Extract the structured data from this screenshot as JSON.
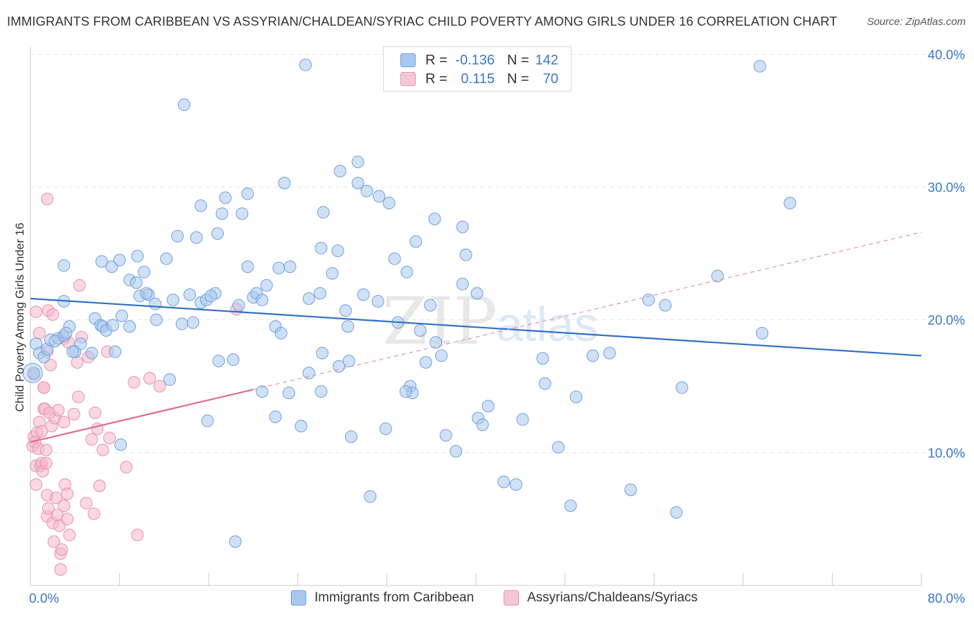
{
  "title": "IMMIGRANTS FROM CARIBBEAN VS ASSYRIAN/CHALDEAN/SYRIAC CHILD POVERTY AMONG GIRLS UNDER 16 CORRELATION CHART",
  "source": "Source: ZipAtlas.com",
  "watermark": {
    "zip": "ZIP",
    "atlas": "atlas"
  },
  "colors": {
    "blue_fill": "#a9c8ee",
    "blue_stroke": "#6f9fdc",
    "blue_line": "#2f6fc7",
    "pink_fill": "#f5b8cc",
    "pink_stroke": "#e890ac",
    "pink_line": "#e06a93",
    "accent_text": "#3b78c5",
    "grid": "#e3e3e3"
  },
  "legend": {
    "rows": [
      {
        "r_label": "R =",
        "r_value": "-0.136",
        "n_label": "N =",
        "n_value": "142",
        "color": "#a9c8ee"
      },
      {
        "r_label": "R =",
        "r_value": "0.115",
        "n_label": "N =",
        "n_value": "70",
        "color": "#f5b8cc"
      }
    ]
  },
  "chart_data": {
    "type": "scatter",
    "title": "IMMIGRANTS FROM CARIBBEAN VS ASSYRIAN/CHALDEAN/SYRIAC CHILD POVERTY AMONG GIRLS UNDER 16 CORRELATION CHART",
    "xlabel": "",
    "ylabel": "Child Poverty Among Girls Under 16",
    "xlim": [
      0,
      80
    ],
    "ylim": [
      0,
      42
    ],
    "x_tick_labels": [
      "0.0%",
      "80.0%"
    ],
    "y_ticks": [
      10,
      20,
      30,
      40
    ],
    "y_tick_labels": [
      "10.0%",
      "20.0%",
      "30.0%",
      "40.0%"
    ],
    "grid": true,
    "legend_position": "top-center",
    "series": [
      {
        "name": "Immigrants from Caribbean",
        "color": "#a9c8ee",
        "trend": {
          "x": [
            0,
            80
          ],
          "y": [
            21.6,
            17.3
          ],
          "style": "solid"
        },
        "points": [
          [
            0.3,
            16.0
          ],
          [
            0.5,
            18.2
          ],
          [
            0.8,
            17.5
          ],
          [
            1.2,
            17.2
          ],
          [
            1.5,
            17.8
          ],
          [
            1.8,
            18.5
          ],
          [
            2.5,
            18.6
          ],
          [
            3.0,
            18.8
          ],
          [
            3.5,
            19.5
          ],
          [
            3.2,
            19.0
          ],
          [
            4.0,
            17.6
          ],
          [
            4.5,
            18.2
          ],
          [
            5.5,
            17.5
          ],
          [
            5.8,
            20.1
          ],
          [
            6.3,
            19.6
          ],
          [
            6.5,
            19.5
          ],
          [
            6.8,
            19.2
          ],
          [
            7.4,
            19.6
          ],
          [
            7.6,
            17.6
          ],
          [
            8.2,
            20.3
          ],
          [
            8.9,
            19.5
          ],
          [
            2.2,
            18.4
          ],
          [
            3.8,
            17.6
          ],
          [
            3.0,
            21.4
          ],
          [
            3.0,
            24.1
          ],
          [
            6.4,
            24.4
          ],
          [
            7.3,
            24.0
          ],
          [
            8.0,
            24.5
          ],
          [
            8.9,
            23.0
          ],
          [
            9.5,
            22.8
          ],
          [
            9.8,
            21.8
          ],
          [
            10.2,
            23.6
          ],
          [
            10.6,
            21.9
          ],
          [
            11.2,
            21.2
          ],
          [
            12.2,
            24.6
          ],
          [
            12.8,
            21.5
          ],
          [
            14.3,
            21.9
          ],
          [
            15.3,
            21.3
          ],
          [
            15.8,
            21.5
          ],
          [
            16.6,
            22.0
          ],
          [
            9.6,
            24.8
          ],
          [
            10.4,
            22.0
          ],
          [
            11.3,
            20.0
          ],
          [
            13.6,
            19.7
          ],
          [
            14.6,
            19.8
          ],
          [
            18.7,
            21.1
          ],
          [
            19.5,
            24.0
          ],
          [
            20.0,
            21.7
          ],
          [
            20.3,
            22.0
          ],
          [
            20.8,
            21.5
          ],
          [
            21.2,
            22.6
          ],
          [
            22.3,
            23.9
          ],
          [
            23.3,
            24.0
          ],
          [
            22.0,
            19.5
          ],
          [
            22.5,
            19.0
          ],
          [
            18.2,
            17.0
          ],
          [
            16.9,
            16.9
          ],
          [
            16.2,
            21.8
          ],
          [
            17.2,
            28.0
          ],
          [
            17.5,
            29.2
          ],
          [
            19.5,
            29.5
          ],
          [
            19.0,
            28.0
          ],
          [
            15.3,
            28.6
          ],
          [
            16.8,
            26.5
          ],
          [
            13.2,
            26.3
          ],
          [
            14.9,
            26.2
          ],
          [
            13.8,
            36.2
          ],
          [
            24.7,
            39.2
          ],
          [
            22.8,
            30.3
          ],
          [
            26.3,
            28.1
          ],
          [
            26.1,
            25.4
          ],
          [
            25.0,
            21.6
          ],
          [
            26.0,
            22.0
          ],
          [
            27.1,
            23.5
          ],
          [
            28.3,
            20.7
          ],
          [
            27.6,
            25.2
          ],
          [
            26.2,
            17.5
          ],
          [
            27.7,
            16.5
          ],
          [
            28.5,
            19.5
          ],
          [
            29.4,
            31.9
          ],
          [
            27.8,
            31.2
          ],
          [
            29.4,
            30.3
          ],
          [
            30.2,
            29.7
          ],
          [
            31.3,
            29.3
          ],
          [
            32.2,
            28.8
          ],
          [
            29.9,
            21.9
          ],
          [
            31.2,
            21.4
          ],
          [
            32.7,
            24.6
          ],
          [
            34.6,
            25.9
          ],
          [
            33.8,
            23.6
          ],
          [
            36.3,
            27.6
          ],
          [
            33.0,
            19.8
          ],
          [
            34.1,
            15.0
          ],
          [
            34.3,
            14.5
          ],
          [
            35.0,
            19.2
          ],
          [
            35.5,
            16.8
          ],
          [
            35.9,
            21.1
          ],
          [
            36.4,
            18.3
          ],
          [
            36.9,
            17.3
          ],
          [
            38.8,
            27.0
          ],
          [
            39.1,
            24.9
          ],
          [
            38.8,
            22.7
          ],
          [
            40.1,
            22.0
          ],
          [
            37.3,
            11.3
          ],
          [
            38.2,
            10.1
          ],
          [
            40.2,
            12.6
          ],
          [
            40.6,
            12.1
          ],
          [
            41.1,
            13.5
          ],
          [
            42.5,
            7.8
          ],
          [
            43.6,
            7.6
          ],
          [
            44.2,
            12.5
          ],
          [
            46.0,
            17.1
          ],
          [
            46.2,
            15.2
          ],
          [
            47.4,
            10.4
          ],
          [
            49.0,
            14.2
          ],
          [
            50.5,
            17.3
          ],
          [
            52.0,
            17.5
          ],
          [
            48.5,
            6.0
          ],
          [
            53.9,
            7.2
          ],
          [
            55.5,
            21.5
          ],
          [
            57.0,
            21.1
          ],
          [
            58.0,
            5.5
          ],
          [
            58.5,
            14.9
          ],
          [
            61.7,
            23.3
          ],
          [
            65.5,
            39.1
          ],
          [
            65.7,
            19.0
          ],
          [
            68.2,
            28.8
          ],
          [
            18.4,
            3.3
          ],
          [
            22.0,
            12.7
          ],
          [
            24.3,
            12.0
          ],
          [
            20.8,
            14.6
          ],
          [
            26.1,
            14.6
          ],
          [
            28.8,
            11.2
          ],
          [
            30.5,
            6.7
          ],
          [
            31.9,
            11.8
          ],
          [
            28.6,
            16.9
          ],
          [
            8.1,
            10.6
          ],
          [
            12.5,
            15.5
          ],
          [
            23.2,
            14.5
          ],
          [
            25.0,
            16.0
          ],
          [
            15.9,
            12.4
          ],
          [
            33.7,
            14.6
          ]
        ]
      },
      {
        "name": "Assyrians/Chaldeans/Syriacs",
        "color": "#f5b8cc",
        "trend": {
          "x": [
            0,
            80
          ],
          "y": [
            10.8,
            26.6
          ],
          "style": "solid-then-dashed",
          "solid_until_x": 20
        },
        "points": [
          [
            0.2,
            10.5
          ],
          [
            0.3,
            11.2
          ],
          [
            0.4,
            10.8
          ],
          [
            0.5,
            9.0
          ],
          [
            0.5,
            7.6
          ],
          [
            0.6,
            11.5
          ],
          [
            0.7,
            10.3
          ],
          [
            0.8,
            12.3
          ],
          [
            0.9,
            9.0
          ],
          [
            1.0,
            9.2
          ],
          [
            1.0,
            11.6
          ],
          [
            1.1,
            8.6
          ],
          [
            1.2,
            13.3
          ],
          [
            1.2,
            14.9
          ],
          [
            1.3,
            13.3
          ],
          [
            1.4,
            10.2
          ],
          [
            1.4,
            9.2
          ],
          [
            1.5,
            6.8
          ],
          [
            1.5,
            5.2
          ],
          [
            1.6,
            5.8
          ],
          [
            1.7,
            13.0
          ],
          [
            1.8,
            16.6
          ],
          [
            1.9,
            12.0
          ],
          [
            2.0,
            4.7
          ],
          [
            2.1,
            3.3
          ],
          [
            2.2,
            12.6
          ],
          [
            2.3,
            6.6
          ],
          [
            2.4,
            5.3
          ],
          [
            2.5,
            13.2
          ],
          [
            2.6,
            4.5
          ],
          [
            2.7,
            2.4
          ],
          [
            2.7,
            1.2
          ],
          [
            2.8,
            2.7
          ],
          [
            3.0,
            6.0
          ],
          [
            3.1,
            7.6
          ],
          [
            3.3,
            6.9
          ],
          [
            3.3,
            5.0
          ],
          [
            3.5,
            3.8
          ],
          [
            3.9,
            12.9
          ],
          [
            4.2,
            16.8
          ],
          [
            4.3,
            14.2
          ],
          [
            4.6,
            18.7
          ],
          [
            5.0,
            6.2
          ],
          [
            5.2,
            17.2
          ],
          [
            5.5,
            11.0
          ],
          [
            5.7,
            5.4
          ],
          [
            5.8,
            13.0
          ],
          [
            6.0,
            11.8
          ],
          [
            6.2,
            7.5
          ],
          [
            6.5,
            10.2
          ],
          [
            6.9,
            17.6
          ],
          [
            7.1,
            11.1
          ],
          [
            8.6,
            8.9
          ],
          [
            9.3,
            15.3
          ],
          [
            9.6,
            3.8
          ],
          [
            10.7,
            15.6
          ],
          [
            11.6,
            15.0
          ],
          [
            18.5,
            20.8
          ],
          [
            3.0,
            18.6
          ],
          [
            3.4,
            18.3
          ],
          [
            4.4,
            22.6
          ],
          [
            1.6,
            20.7
          ],
          [
            0.8,
            19.0
          ],
          [
            1.5,
            17.6
          ],
          [
            1.2,
            14.9
          ],
          [
            2.0,
            20.4
          ],
          [
            0.5,
            20.6
          ],
          [
            1.5,
            29.1
          ],
          [
            3.0,
            12.3
          ],
          [
            0.3,
            15.9
          ]
        ]
      }
    ]
  },
  "bottom_legend": [
    {
      "label": "Immigrants from Caribbean",
      "color": "#a9c8ee"
    },
    {
      "label": "Assyrians/Chaldeans/Syriacs",
      "color": "#f5b8cc"
    }
  ]
}
